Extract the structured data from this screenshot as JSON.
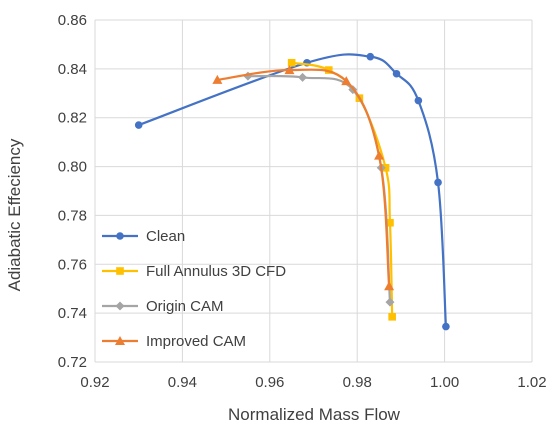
{
  "chart_data": {
    "type": "line",
    "title": "",
    "xlabel": "Normalized Mass Flow",
    "ylabel": "Adiabatic Effeciency",
    "xlim": [
      0.92,
      1.02
    ],
    "ylim": [
      0.72,
      0.86
    ],
    "xticks": [
      "0.92",
      "0.94",
      "0.96",
      "0.98",
      "1.00",
      "1.02"
    ],
    "yticks": [
      "0.72",
      "0.74",
      "0.76",
      "0.78",
      "0.80",
      "0.82",
      "0.84",
      "0.86"
    ],
    "grid": true,
    "legend_position": "bottom-left",
    "series": [
      {
        "name": "Clean",
        "color": "#4472C4",
        "marker": "circle",
        "x": [
          0.93,
          0.9685,
          0.983,
          0.989,
          0.994,
          0.9985,
          1.0003
        ],
        "y": [
          0.817,
          0.8425,
          0.845,
          0.838,
          0.827,
          0.7935,
          0.7345
        ]
      },
      {
        "name": "Full Annulus 3D CFD",
        "color": "#FFC000",
        "marker": "square",
        "x": [
          0.965,
          0.9735,
          0.9805,
          0.9865,
          0.9875,
          0.988
        ],
        "y": [
          0.8425,
          0.8395,
          0.828,
          0.7995,
          0.777,
          0.7385
        ]
      },
      {
        "name": "Origin CAM",
        "color": "#A5A5A5",
        "marker": "diamond",
        "x": [
          0.955,
          0.9675,
          0.979,
          0.9855,
          0.9875
        ],
        "y": [
          0.837,
          0.8365,
          0.8315,
          0.7995,
          0.7445
        ]
      },
      {
        "name": "Improved CAM",
        "color": "#ED7D31",
        "marker": "triangle",
        "x": [
          0.948,
          0.9645,
          0.9775,
          0.985,
          0.9873
        ],
        "y": [
          0.8355,
          0.8395,
          0.835,
          0.8045,
          0.751
        ]
      }
    ]
  }
}
